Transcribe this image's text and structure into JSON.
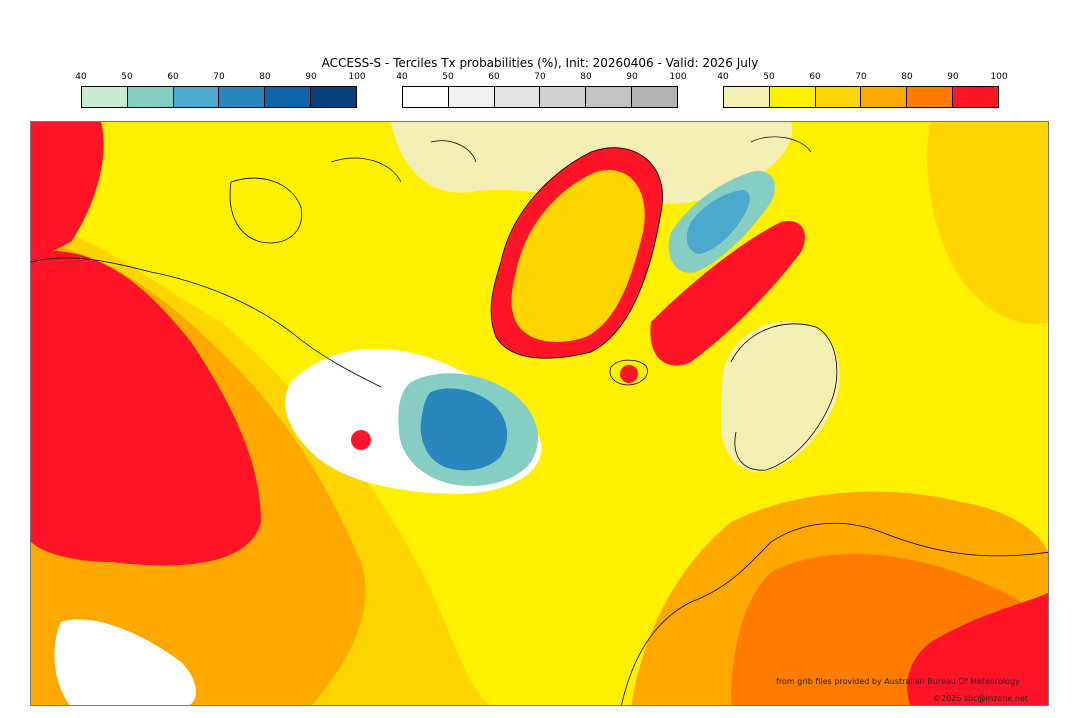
{
  "title": "ACCESS-S - Terciles Tx probabilities (%), Init: 20260406 - Valid: 2026 July",
  "colorbars": [
    {
      "ticks": [
        "40",
        "50",
        "60",
        "70",
        "80",
        "90",
        "100"
      ],
      "colors": [
        "#c8ead2",
        "#86cdc4",
        "#4aa9cd",
        "#2a87be",
        "#0f63a8",
        "#083f7c"
      ]
    },
    {
      "ticks": [
        "40",
        "50",
        "60",
        "70",
        "80",
        "90",
        "100"
      ],
      "colors": [
        "#ffffff",
        "#f0f0f0",
        "#e2e2e2",
        "#d1d1d1",
        "#c3c3c3",
        "#b3b3b3"
      ]
    },
    {
      "ticks": [
        "40",
        "50",
        "60",
        "70",
        "80",
        "90",
        "100"
      ],
      "colors": [
        "#f3efb4",
        "#fff000",
        "#ffd500",
        "#ffa800",
        "#ff7c00",
        "#ff1428"
      ]
    }
  ],
  "credits": {
    "source": "from grib files provided by Australian Bureau Of Meteorology",
    "copyright": "©2026 sbc@irizone.net"
  }
}
